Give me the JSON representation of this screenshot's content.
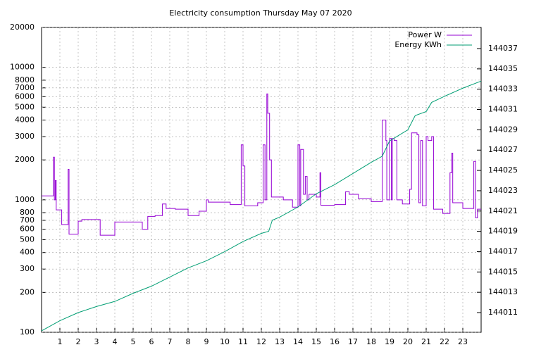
{
  "chart_data": {
    "type": "line",
    "title": "Electricity consumption Thursday May 07 2020",
    "xlim": [
      0,
      24
    ],
    "xticks": [
      1,
      2,
      3,
      4,
      5,
      6,
      7,
      8,
      9,
      10,
      11,
      12,
      13,
      14,
      15,
      16,
      17,
      18,
      19,
      20,
      21,
      22,
      23
    ],
    "ylim": [
      100,
      20000
    ],
    "yscale": "log",
    "yticks": [
      100,
      200,
      300,
      400,
      500,
      600,
      700,
      800,
      1000,
      2000,
      3000,
      4000,
      5000,
      6000,
      7000,
      8000,
      10000,
      20000
    ],
    "y2lim": [
      144009.06,
      144039.08
    ],
    "y2ticks": [
      144011,
      144013,
      144015,
      144017,
      144019,
      144021,
      144023,
      144025,
      144027,
      144029,
      144031,
      144033,
      144035,
      144037
    ],
    "grid": true,
    "legend": "top-right",
    "series": [
      {
        "name": "Power W",
        "color": "#9400d3",
        "step": true,
        "x": [
          0,
          0.65,
          0.7,
          0.75,
          0.8,
          0.85,
          1.1,
          1.45,
          1.5,
          2.0,
          2.2,
          3.2,
          4.0,
          5.5,
          5.8,
          6.2,
          6.6,
          6.8,
          7.3,
          8.0,
          8.6,
          9.0,
          9.1,
          10.3,
          10.9,
          11.0,
          11.1,
          11.8,
          12.1,
          12.2,
          12.3,
          12.35,
          12.45,
          12.55,
          13.2,
          13.7,
          14.0,
          14.1,
          14.15,
          14.3,
          14.4,
          14.5,
          14.6,
          15.0,
          15.2,
          15.25,
          16.0,
          16.6,
          16.8,
          17.3,
          18.0,
          18.6,
          18.8,
          18.85,
          19.0,
          19.1,
          19.15,
          19.25,
          19.4,
          19.7,
          20.1,
          20.2,
          20.5,
          20.6,
          20.7,
          20.8,
          21.0,
          21.1,
          21.3,
          21.4,
          21.9,
          22.3,
          22.4,
          22.45,
          22.6,
          23.0,
          23.6,
          23.7,
          23.8,
          24
        ],
        "values": [
          1070,
          2100,
          1000,
          1400,
          840,
          840,
          650,
          1700,
          550,
          690,
          710,
          540,
          680,
          600,
          750,
          760,
          930,
          860,
          850,
          760,
          820,
          1000,
          960,
          920,
          2600,
          1800,
          900,
          950,
          2600,
          1000,
          6300,
          4500,
          2000,
          1050,
          1000,
          880,
          2600,
          900,
          2400,
          1100,
          1500,
          1000,
          1100,
          1050,
          1600,
          910,
          920,
          1150,
          1100,
          1020,
          970,
          4000,
          2800,
          1000,
          2900,
          1000,
          2900,
          2800,
          1000,
          930,
          1200,
          3200,
          3100,
          950,
          2800,
          900,
          3000,
          2800,
          3000,
          850,
          790,
          1600,
          2250,
          950,
          950,
          860,
          1950,
          730,
          850,
          850
        ]
      },
      {
        "name": "Energy KWh",
        "color": "#009e73",
        "axis": "y2",
        "x": [
          0,
          1,
          2,
          3,
          4,
          5,
          6,
          7,
          8,
          9,
          10,
          11,
          12,
          12.4,
          12.6,
          13,
          14,
          15,
          16,
          17,
          18,
          18.6,
          19,
          20,
          20.4,
          21,
          21.3,
          22,
          23,
          24
        ],
        "values": [
          144009.2,
          144010.2,
          144011.0,
          144011.6,
          144012.1,
          144012.9,
          144013.6,
          144014.5,
          144015.4,
          144016.1,
          144017.0,
          144018.0,
          144018.8,
          144019.0,
          144020.1,
          144020.4,
          144021.4,
          144022.7,
          144023.6,
          144024.7,
          144025.8,
          144026.4,
          144027.9,
          144029.0,
          144030.4,
          144030.8,
          144031.7,
          144032.3,
          144033.1,
          144033.8
        ]
      }
    ]
  }
}
